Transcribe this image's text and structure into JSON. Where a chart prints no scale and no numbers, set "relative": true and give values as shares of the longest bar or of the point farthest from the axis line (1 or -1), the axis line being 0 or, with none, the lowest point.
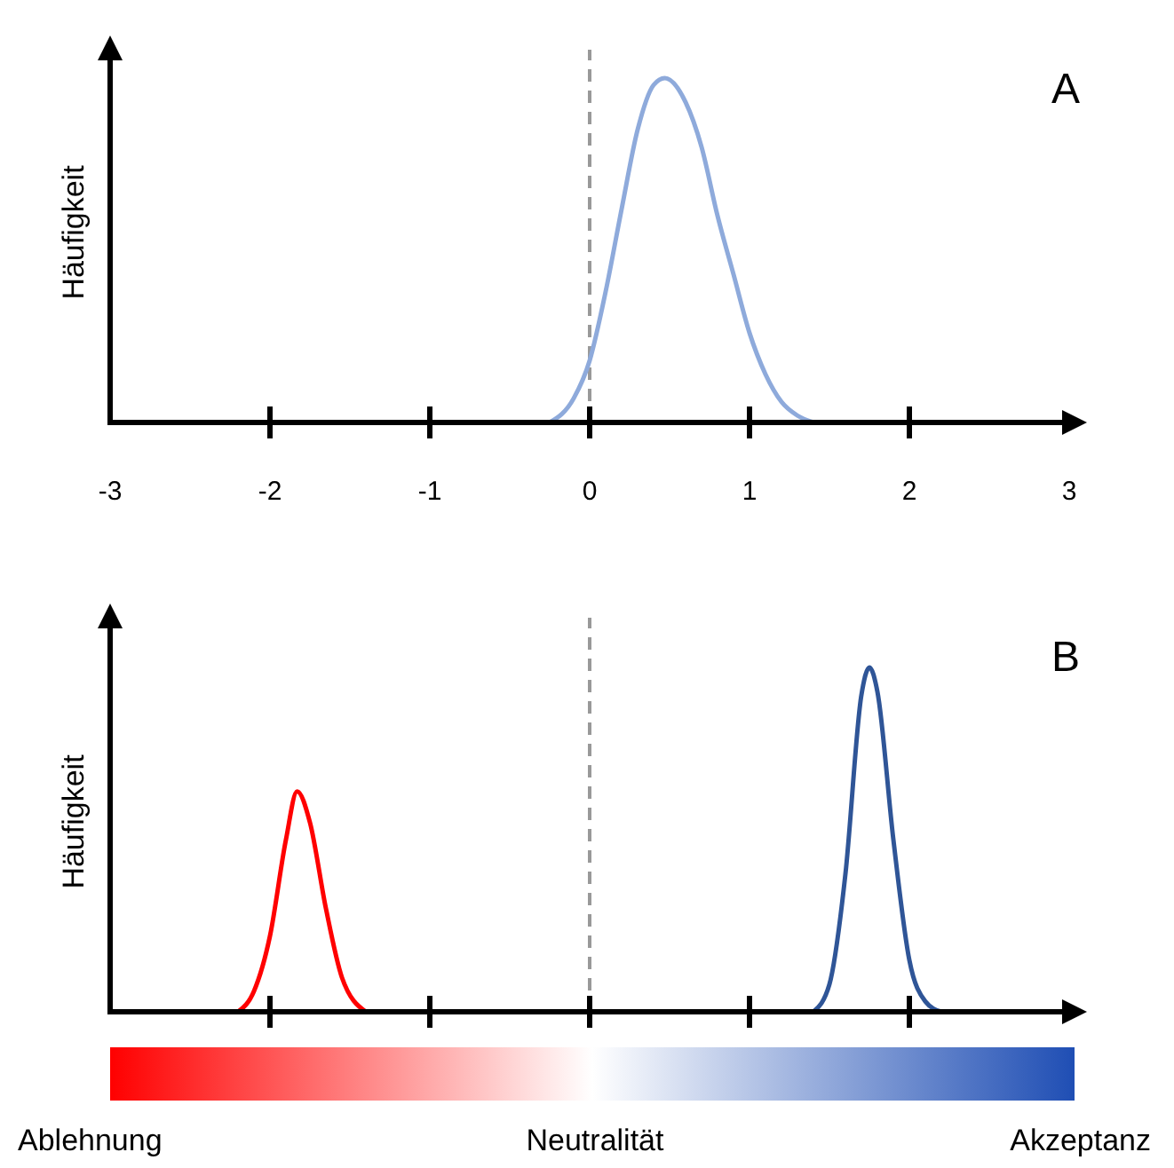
{
  "chart_data": [
    {
      "type": "line",
      "relative": true,
      "ylabel": "Häufigkeit",
      "xlim": [
        -3,
        3
      ],
      "xticks": [
        -3,
        -2,
        -1,
        0,
        1,
        2,
        3
      ],
      "tick_labels": "x",
      "annotations": [
        "A"
      ],
      "ref_lines": [
        {
          "axis": "x",
          "value": 0,
          "color": "#999999",
          "line_style": "dashed"
        }
      ],
      "series": [
        {
          "color": "#8eaadb",
          "x": [
            -0.25,
            -0.1,
            0,
            0.1,
            0.2,
            0.3,
            0.4,
            0.47,
            0.6,
            0.7,
            0.8,
            0.9,
            1.0,
            1.1,
            1.2,
            1.3,
            1.4
          ],
          "values": [
            0,
            0.07,
            0.18,
            0.38,
            0.62,
            0.85,
            0.98,
            1,
            0.93,
            0.8,
            0.6,
            0.43,
            0.26,
            0.14,
            0.06,
            0.02,
            0
          ]
        }
      ]
    },
    {
      "type": "line",
      "relative": true,
      "ylabel": "Häufigkeit",
      "xlim": [
        -3,
        3
      ],
      "xticks": [
        {
          "value": -2,
          "label": null
        },
        {
          "value": -1,
          "label": null
        },
        {
          "value": 0,
          "label": null
        },
        {
          "value": 1,
          "label": null
        },
        {
          "value": 2,
          "label": null
        }
      ],
      "tick_labels": false,
      "annotations": [
        "B",
        "Ablehnung",
        "Neutralität",
        "Akzeptanz"
      ],
      "ref_lines": [
        {
          "axis": "x",
          "value": 0,
          "color": "#999999",
          "line_style": "dashed"
        }
      ],
      "series": [
        {
          "color": "#ff0000",
          "x": [
            -2.2,
            -2.1,
            -2.0,
            -1.9,
            -1.83,
            -1.75,
            -1.65,
            -1.55,
            -1.4
          ],
          "values": [
            0,
            0.06,
            0.22,
            0.5,
            0.64,
            0.55,
            0.3,
            0.1,
            0
          ]
        },
        {
          "color": "#2f5597",
          "x": [
            1.4,
            1.5,
            1.6,
            1.7,
            1.75,
            1.8,
            1.9,
            2.0,
            2.1,
            2.2
          ],
          "values": [
            0,
            0.08,
            0.4,
            0.92,
            1,
            0.93,
            0.5,
            0.15,
            0.03,
            0
          ]
        }
      ]
    }
  ]
}
